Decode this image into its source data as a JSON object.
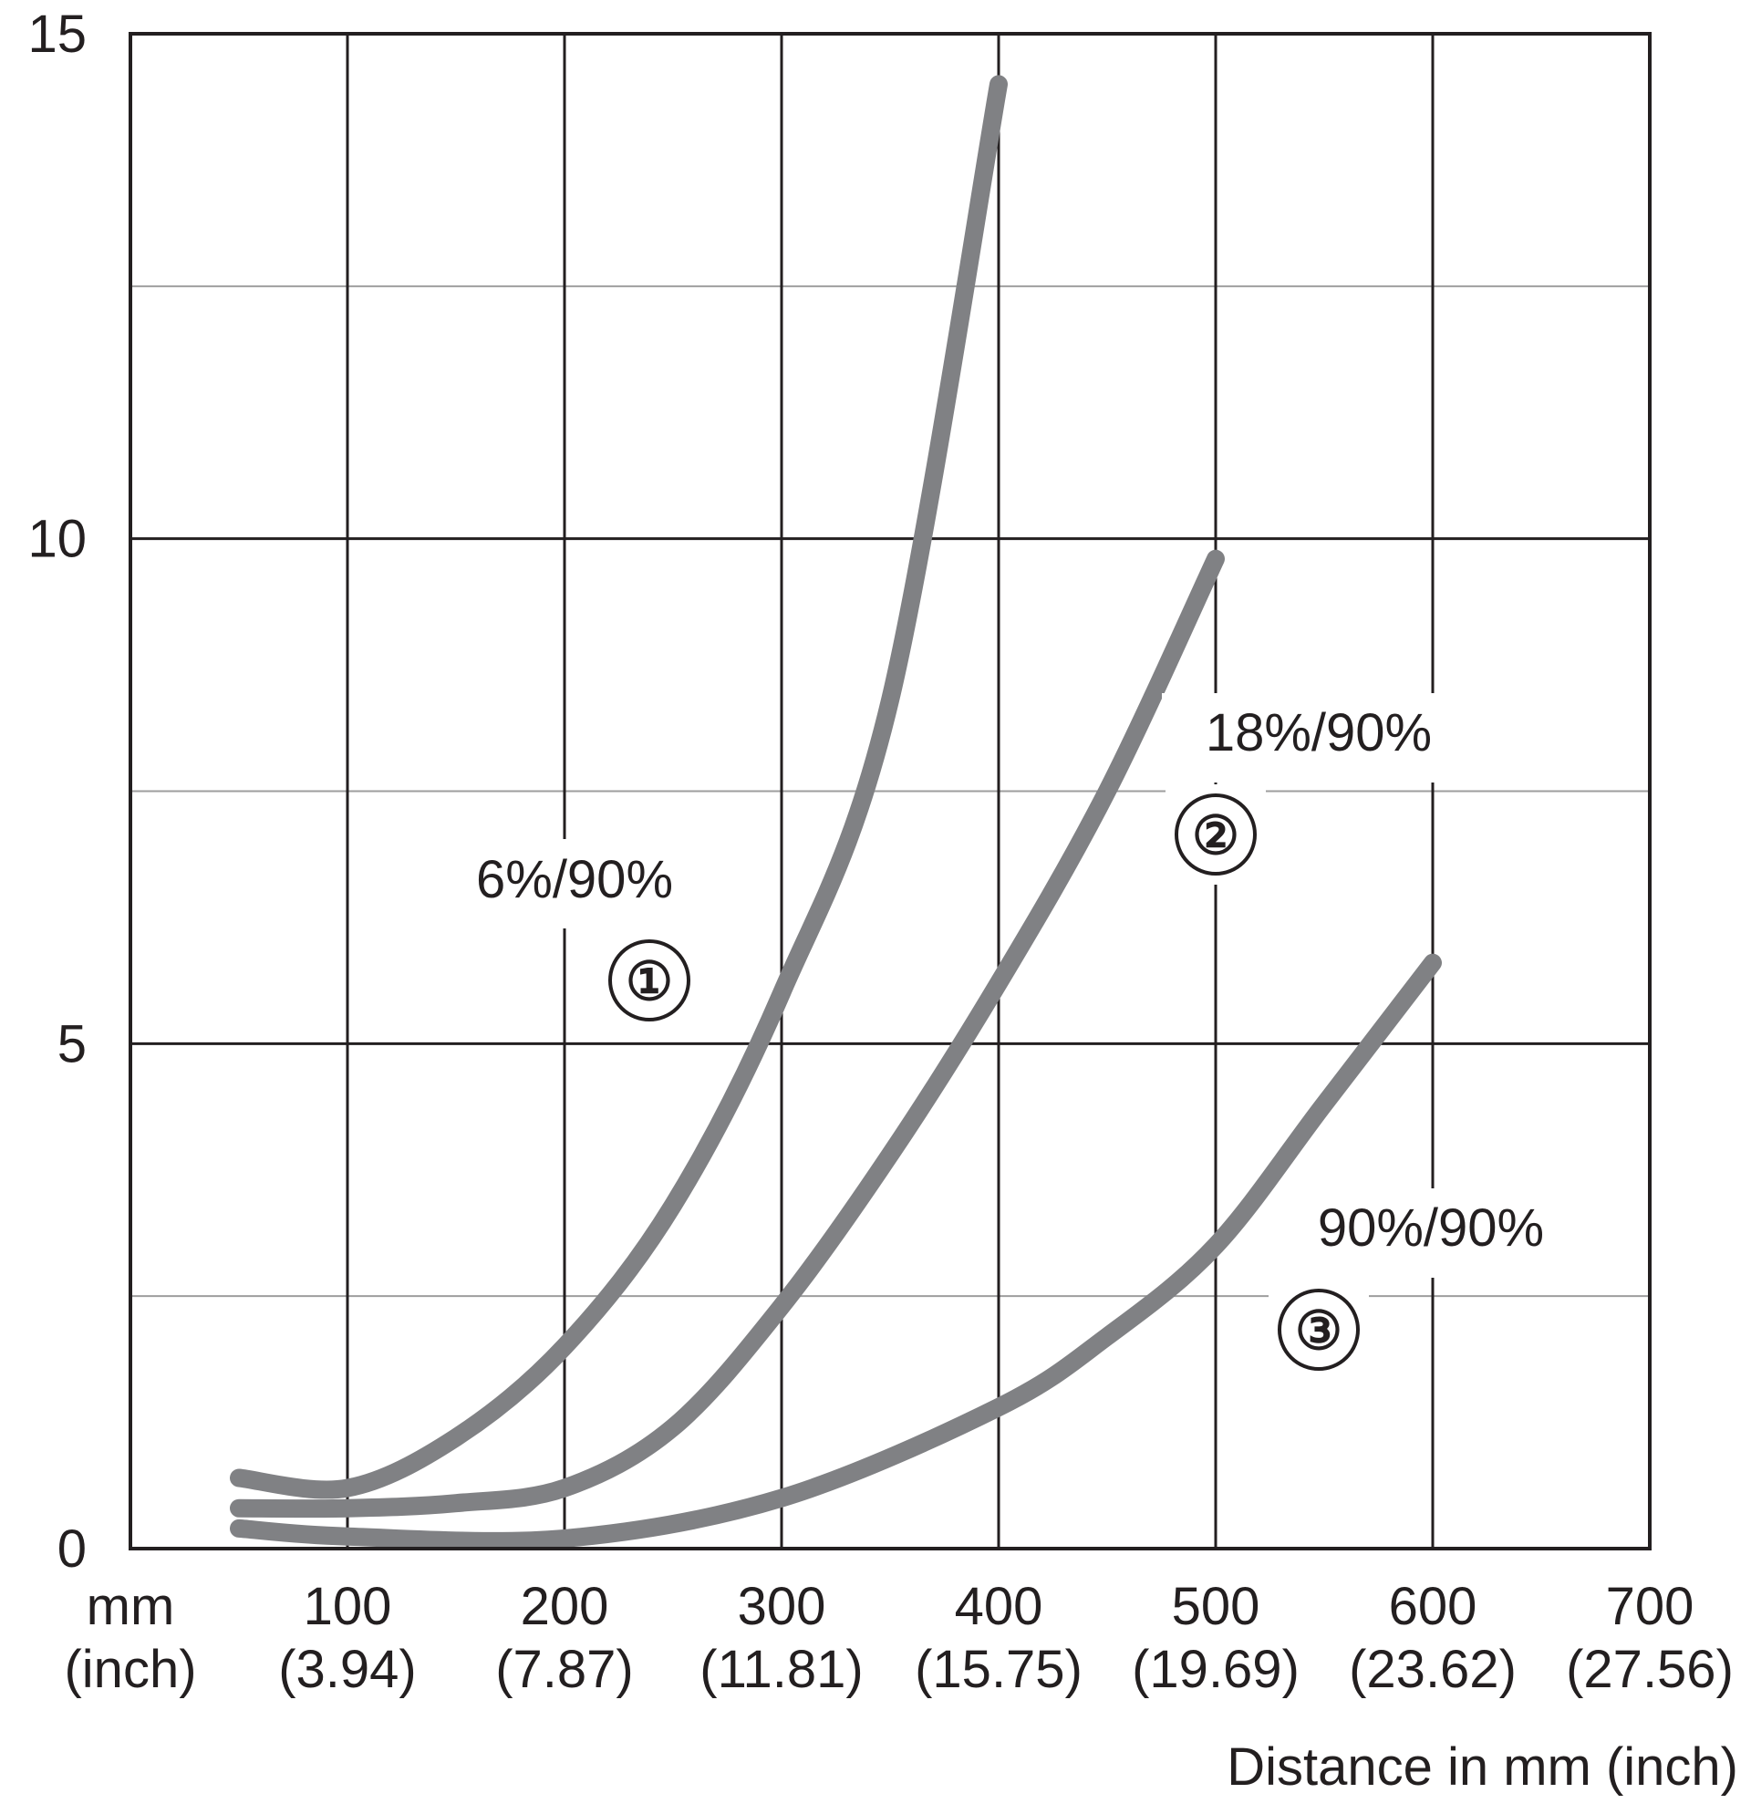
{
  "chart_data": {
    "type": "line",
    "title": "",
    "xlabel": "Distance in mm (inch)",
    "ylabel": "",
    "xlim": [
      0,
      700
    ],
    "ylim": [
      0,
      15
    ],
    "x_unit_labels": [
      "mm",
      "(inch)"
    ],
    "x_ticks": [
      {
        "value": 100,
        "mm": "100",
        "inch": "(3.94)"
      },
      {
        "value": 200,
        "mm": "200",
        "inch": "(7.87)"
      },
      {
        "value": 300,
        "mm": "300",
        "inch": "(11.81)"
      },
      {
        "value": 400,
        "mm": "400",
        "inch": "(15.75)"
      },
      {
        "value": 500,
        "mm": "500",
        "inch": "(19.69)"
      },
      {
        "value": 600,
        "mm": "600",
        "inch": "(23.62)"
      },
      {
        "value": 700,
        "mm": "700",
        "inch": "(27.56)"
      }
    ],
    "y_ticks": [
      {
        "value": 0,
        "label": "0"
      },
      {
        "value": 5,
        "label": "5"
      },
      {
        "value": 10,
        "label": "10"
      },
      {
        "value": 15,
        "label": "15"
      }
    ],
    "y_minor_gridlines": [
      2.5,
      7.5,
      12.5
    ],
    "grid": true,
    "series_color": "#808184",
    "series": [
      {
        "name": "6%/90%",
        "marker": "①",
        "points": [
          [
            50,
            0.7
          ],
          [
            100,
            0.6
          ],
          [
            150,
            1.1
          ],
          [
            200,
            2.0
          ],
          [
            250,
            3.4
          ],
          [
            300,
            5.5
          ],
          [
            350,
            8.4
          ],
          [
            400,
            14.5
          ]
        ]
      },
      {
        "name": "18%/90%",
        "marker": "②",
        "points": [
          [
            50,
            0.4
          ],
          [
            100,
            0.4
          ],
          [
            150,
            0.45
          ],
          [
            200,
            0.6
          ],
          [
            250,
            1.2
          ],
          [
            300,
            2.4
          ],
          [
            350,
            3.9
          ],
          [
            400,
            5.6
          ],
          [
            450,
            7.5
          ],
          [
            500,
            9.8
          ]
        ]
      },
      {
        "name": "90%/90%",
        "marker": "③",
        "points": [
          [
            50,
            0.2
          ],
          [
            100,
            0.12
          ],
          [
            200,
            0.1
          ],
          [
            300,
            0.5
          ],
          [
            400,
            1.4
          ],
          [
            450,
            2.1
          ],
          [
            500,
            3.0
          ],
          [
            550,
            4.4
          ],
          [
            600,
            5.8
          ]
        ]
      }
    ]
  }
}
